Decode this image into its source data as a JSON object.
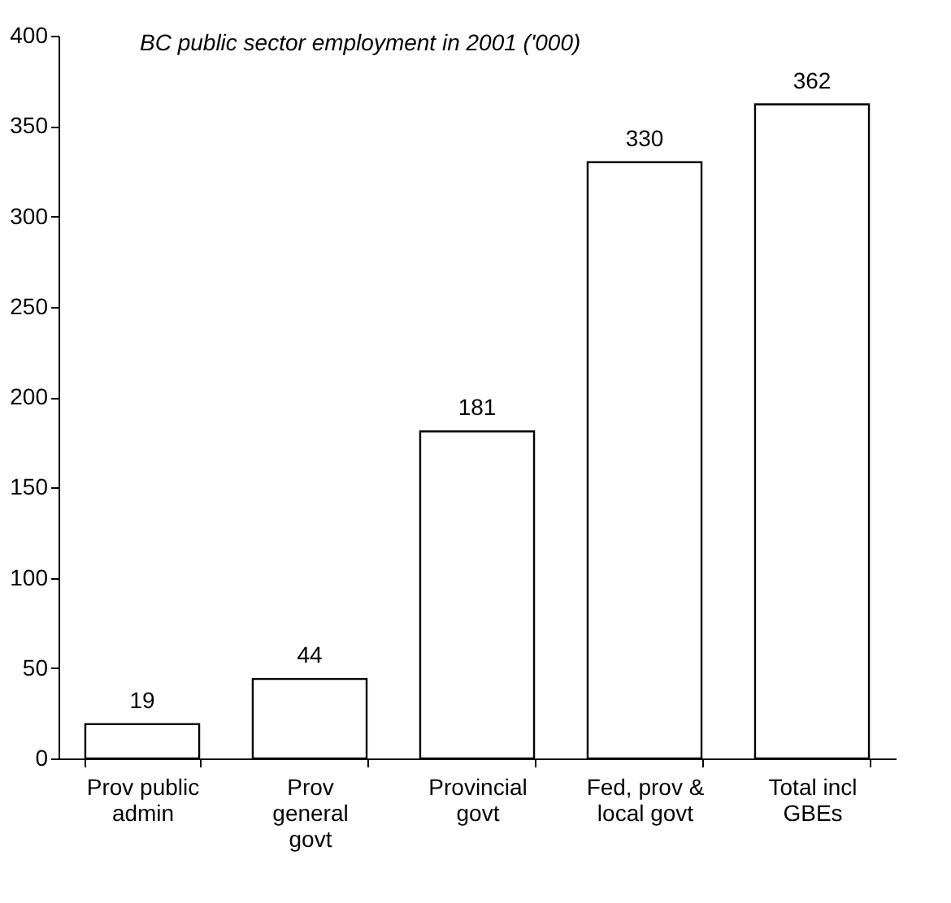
{
  "chart_data": {
    "type": "bar",
    "title": "BC public sector employment in 2001 ('000)",
    "categories": [
      "Prov public admin",
      "Prov general govt",
      "Provincial govt",
      "Fed, prov & local govt",
      "Total incl GBEs"
    ],
    "values": [
      19,
      44,
      181,
      330,
      362
    ],
    "color": "#ffffff",
    "ylim": [
      0,
      400
    ],
    "yticks": [
      0,
      50,
      100,
      150,
      200,
      250,
      300,
      350,
      400
    ],
    "data_labels": true,
    "grid": false
  }
}
